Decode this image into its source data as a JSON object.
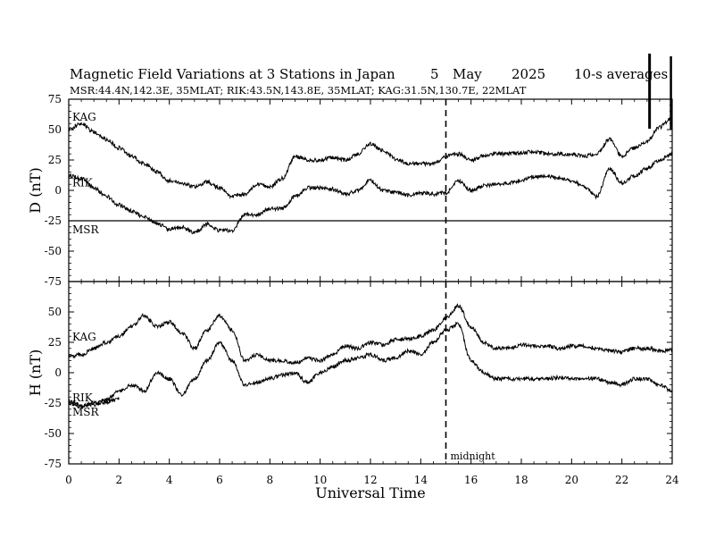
{
  "chart_data": {
    "type": "line",
    "title": {
      "main": "Magnetic Field Variations at 3 Stations in Japan",
      "day": "5",
      "month": "May",
      "year": "2025",
      "averaging": "10-s averages"
    },
    "subtitle": "MSR:44.4N,142.3E, 35MLAT;   RIK:43.5N,143.8E, 35MLAT;   KAG:31.5N,130.7E, 22MLAT",
    "xlabel": "Universal Time",
    "xlim": [
      0,
      24
    ],
    "x_ticks": [
      "0",
      "2",
      "4",
      "6",
      "8",
      "10",
      "12",
      "14",
      "16",
      "18",
      "20",
      "22",
      "24"
    ],
    "midnight_marker": {
      "x": 15,
      "label": "midnight"
    },
    "grid": false,
    "panels": [
      {
        "name": "D",
        "ylabel": "D (nT)",
        "ylim": [
          -75,
          75
        ],
        "y_ticks": [
          "75",
          "50",
          "25",
          "0",
          "-25",
          "-50",
          "-75"
        ],
        "series": [
          {
            "name": "KAG",
            "offset_level": 50,
            "x": [
              0,
              0.5,
              1,
              1.5,
              2,
              2.5,
              3,
              3.5,
              4,
              4.5,
              5,
              5.5,
              6,
              6.5,
              7,
              7.5,
              8,
              8.5,
              9,
              9.5,
              10,
              10.5,
              11,
              11.5,
              12,
              12.5,
              13,
              13.5,
              14,
              14.5,
              15,
              15.5,
              16,
              16.5,
              17,
              17.5,
              18,
              18.5,
              19,
              19.5,
              20,
              20.5,
              21,
              21.5,
              22,
              22.5,
              23,
              23.5,
              24
            ],
            "values": [
              50,
              55,
              48,
              42,
              35,
              28,
              22,
              15,
              8,
              6,
              3,
              7,
              2,
              -5,
              -3,
              5,
              3,
              10,
              28,
              25,
              25,
              27,
              25,
              30,
              38,
              33,
              26,
              22,
              22,
              22,
              28,
              30,
              25,
              28,
              30,
              30,
              31,
              32,
              30,
              30,
              30,
              28,
              30,
              42,
              28,
              35,
              40,
              52,
              60
            ]
          },
          {
            "name": "RIK",
            "offset_level": 2,
            "x": [
              0,
              0.5,
              1,
              1.5,
              2,
              2.5,
              3,
              3.5,
              4,
              4.5,
              5,
              5.5,
              6,
              6.5,
              7,
              7.5,
              8,
              8.5,
              9,
              9.5,
              10,
              10.5,
              11,
              11.5,
              12,
              12.5,
              13,
              13.5,
              14,
              14.5,
              15,
              15.5,
              16,
              16.5,
              17,
              17.5,
              18,
              18.5,
              19,
              19.5,
              20,
              20.5,
              21,
              21.5,
              22,
              22.5,
              23,
              23.5,
              24
            ],
            "values": [
              12,
              10,
              2,
              -5,
              -12,
              -17,
              -22,
              -27,
              -32,
              -30,
              -35,
              -28,
              -33,
              -33,
              -20,
              -20,
              -15,
              -15,
              -5,
              2,
              2,
              1,
              -3,
              0,
              8,
              0,
              -2,
              -4,
              -2,
              -3,
              -2,
              8,
              0,
              4,
              5,
              6,
              8,
              11,
              12,
              10,
              8,
              3,
              -5,
              18,
              6,
              12,
              18,
              25,
              30
            ]
          },
          {
            "name": "MSR",
            "offset_level": -25,
            "x": [
              0,
              6,
              12,
              18,
              24
            ],
            "values": [
              -25,
              -25,
              -25,
              -25,
              -25
            ]
          }
        ]
      },
      {
        "name": "H",
        "ylabel": "H (nT)",
        "ylim": [
          -75,
          75
        ],
        "y_ticks": [
          "50",
          "25",
          "0",
          "-25",
          "-50",
          "-75"
        ],
        "series": [
          {
            "name": "KAG",
            "offset_level": 25,
            "x": [
              0,
              0.5,
              1,
              1.5,
              2,
              2.5,
              3,
              3.5,
              4,
              4.5,
              5,
              5.5,
              6,
              6.5,
              7,
              7.5,
              8,
              8.5,
              9,
              9.5,
              10,
              10.5,
              11,
              11.5,
              12,
              12.5,
              13,
              13.5,
              14,
              14.5,
              15,
              15.5,
              16,
              16.5,
              17,
              17.5,
              18,
              18.5,
              19,
              19.5,
              20,
              20.5,
              21,
              21.5,
              22,
              22.5,
              23,
              23.5,
              24
            ],
            "values": [
              13,
              15,
              20,
              25,
              30,
              38,
              47,
              38,
              42,
              33,
              20,
              35,
              47,
              35,
              10,
              15,
              10,
              10,
              8,
              12,
              10,
              15,
              22,
              20,
              25,
              23,
              27,
              28,
              30,
              35,
              45,
              55,
              38,
              25,
              20,
              20,
              23,
              22,
              22,
              20,
              22,
              22,
              20,
              18,
              17,
              20,
              20,
              18,
              18
            ]
          },
          {
            "name": "MSR",
            "offset_level": -25,
            "x": [
              0,
              0.5,
              1,
              1.5,
              2,
              2.5,
              3,
              3.5,
              4,
              4.5,
              5,
              5.5,
              6,
              6.5,
              7,
              7.5,
              8,
              8.5,
              9,
              9.5,
              10,
              10.5,
              11,
              11.5,
              12,
              12.5,
              13,
              13.5,
              14,
              14.5,
              15,
              15.5,
              16,
              16.5,
              17,
              17.5,
              18,
              18.5,
              19,
              19.5,
              20,
              20.5,
              21,
              21.5,
              22,
              22.5,
              23,
              23.5,
              24
            ],
            "values": [
              -25,
              -28,
              -25,
              -22,
              -15,
              -10,
              -15,
              0,
              -5,
              -18,
              -5,
              10,
              25,
              10,
              -10,
              -8,
              -5,
              -2,
              0,
              -8,
              0,
              5,
              10,
              12,
              15,
              10,
              12,
              18,
              15,
              25,
              35,
              40,
              10,
              0,
              -5,
              -5,
              -5,
              -5,
              -5,
              -4,
              -5,
              -5,
              -5,
              -8,
              -10,
              -5,
              -5,
              -10,
              -15
            ]
          },
          {
            "name": "RIK",
            "offset_level": -25,
            "x": [
              0,
              0.5,
              1,
              1.5,
              2
            ],
            "values": [
              -23,
              -27,
              -26,
              -24,
              -22
            ]
          }
        ]
      }
    ],
    "colors": {
      "line": "#000000",
      "background": "#ffffff"
    }
  }
}
